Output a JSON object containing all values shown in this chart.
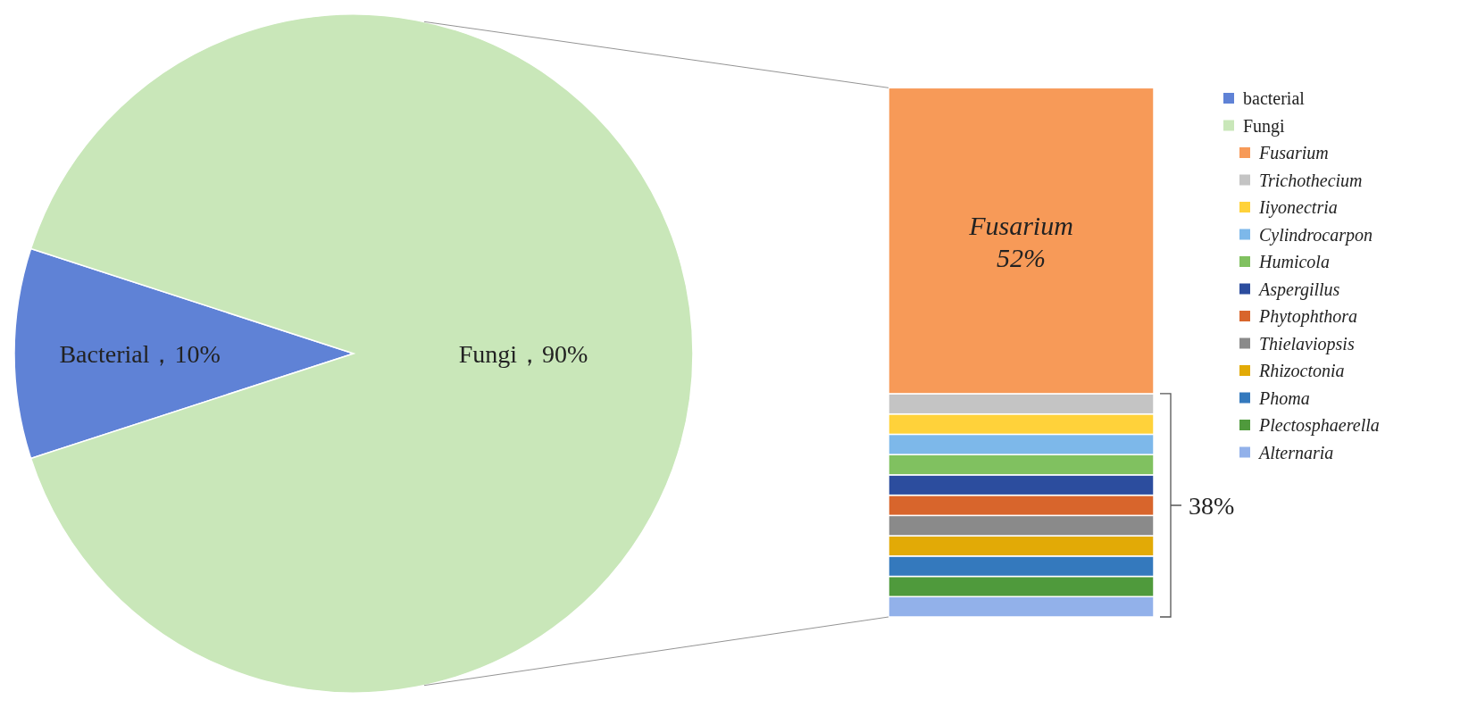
{
  "chart_data": [
    {
      "type": "pie",
      "categories": [
        "bacterial",
        "Fungi"
      ],
      "values": [
        10,
        90
      ],
      "colors": [
        "#5f82d6",
        "#c9e7b9"
      ],
      "value_labels": [
        "Bacterial，10%",
        "Fungi，90%"
      ],
      "legend": "right"
    },
    {
      "type": "bar",
      "stacked": true,
      "categories": [
        null
      ],
      "ylim": [
        0,
        90
      ],
      "tick_labels": false,
      "legend": "right",
      "series": [
        {
          "name": "Alternaria",
          "color": "#92b1ea",
          "values": [
            3.45
          ]
        },
        {
          "name": "Plectosphaerella",
          "color": "#4f9a3c",
          "values": [
            3.45
          ]
        },
        {
          "name": "Phoma",
          "color": "#3479bd",
          "values": [
            3.45
          ]
        },
        {
          "name": "Rhizoctonia",
          "color": "#e2aa06",
          "values": [
            3.45
          ]
        },
        {
          "name": "Thielaviopsis",
          "color": "#8a8a8a",
          "values": [
            3.45
          ]
        },
        {
          "name": "Phytophthora",
          "color": "#d8652c",
          "values": [
            3.45
          ]
        },
        {
          "name": "Aspergillus",
          "color": "#2c4d9e",
          "values": [
            3.45
          ]
        },
        {
          "name": "Humicola",
          "color": "#80c160",
          "values": [
            3.45
          ]
        },
        {
          "name": "Cylindrocarpon",
          "color": "#7db8ea",
          "values": [
            3.45
          ]
        },
        {
          "name": "Iiyonectria",
          "color": "#ffd23a",
          "values": [
            3.45
          ]
        },
        {
          "name": "Trichothecium",
          "color": "#c4c4c4",
          "values": [
            3.45
          ]
        },
        {
          "name": "Fusarium",
          "color": "#f79a58",
          "values": [
            52
          ],
          "value_labels": [
            "Fusarium\n52%"
          ]
        }
      ],
      "annotations": [
        {
          "text": "38%"
        }
      ]
    }
  ]
}
